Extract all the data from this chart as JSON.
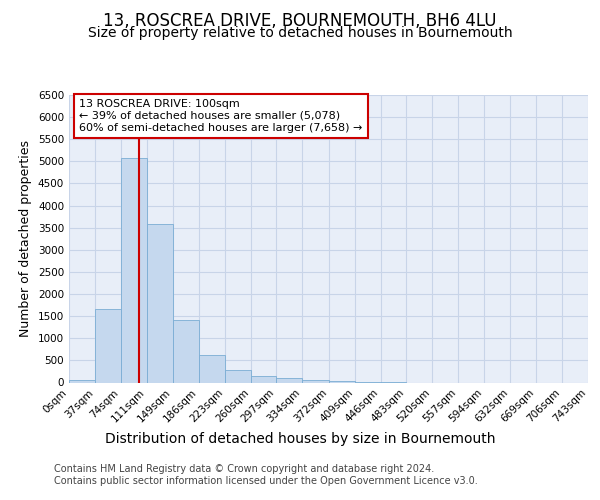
{
  "title": "13, ROSCREA DRIVE, BOURNEMOUTH, BH6 4LU",
  "subtitle": "Size of property relative to detached houses in Bournemouth",
  "xlabel": "Distribution of detached houses by size in Bournemouth",
  "ylabel": "Number of detached properties",
  "footer_line1": "Contains HM Land Registry data © Crown copyright and database right 2024.",
  "footer_line2": "Contains public sector information licensed under the Open Government Licence v3.0.",
  "annotation_line1": "13 ROSCREA DRIVE: 100sqm",
  "annotation_line2": "← 39% of detached houses are smaller (5,078)",
  "annotation_line3": "60% of semi-detached houses are larger (7,658) →",
  "bar_color": "#c5d8ee",
  "bar_edgecolor": "#7aadd4",
  "vline_color": "#cc0000",
  "vline_x": 100,
  "ylim": [
    0,
    6500
  ],
  "xlim": [
    0,
    743
  ],
  "bin_edges": [
    0,
    37,
    74,
    111,
    149,
    186,
    223,
    260,
    297,
    334,
    372,
    409,
    446,
    483,
    520,
    557,
    594,
    632,
    669,
    706,
    743
  ],
  "bar_heights": [
    50,
    1670,
    5080,
    3580,
    1420,
    620,
    290,
    145,
    100,
    65,
    40,
    15,
    10,
    0,
    0,
    0,
    0,
    0,
    0,
    0
  ],
  "grid_color": "#c8d4e8",
  "background_color": "#e8eef8",
  "annotation_box_edgecolor": "#cc0000",
  "annotation_box_facecolor": "#ffffff",
  "title_fontsize": 12,
  "subtitle_fontsize": 10,
  "xlabel_fontsize": 10,
  "ylabel_fontsize": 9,
  "tick_fontsize": 7.5,
  "annotation_fontsize": 8,
  "footer_fontsize": 7
}
